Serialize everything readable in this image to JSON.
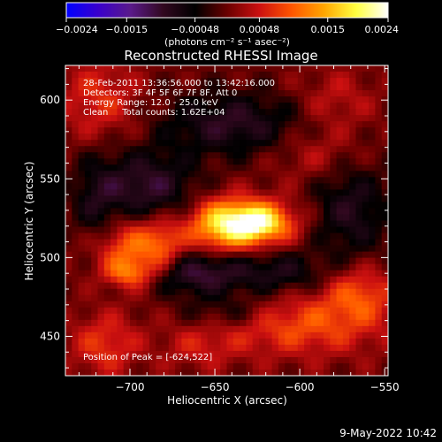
{
  "chart_data": {
    "type": "heatmap",
    "title": "Reconstructed RHESSI Image",
    "xlabel": "Heliocentric X (arcsec)",
    "ylabel": "Heliocentric Y (arcsec)",
    "xlim": [
      -738,
      -548
    ],
    "ylim": [
      425,
      622
    ],
    "x_ticks": [
      {
        "value": -700,
        "label": "−700"
      },
      {
        "value": -650,
        "label": "−650"
      },
      {
        "value": -600,
        "label": "−600"
      },
      {
        "value": -550,
        "label": "−550"
      }
    ],
    "y_ticks": [
      {
        "value": 450,
        "label": "450"
      },
      {
        "value": 500,
        "label": "500"
      },
      {
        "value": 550,
        "label": "550"
      },
      {
        "value": 600,
        "label": "600"
      }
    ],
    "colorbar": {
      "range": [
        -0.0024,
        0.0024
      ],
      "ticks": [
        {
          "value": -0.0024,
          "label": "−0.0024"
        },
        {
          "value": -0.0015,
          "label": "−0.0015"
        },
        {
          "value": -0.00048,
          "label": "−0.00048"
        },
        {
          "value": 0.00048,
          "label": "0.00048"
        },
        {
          "value": 0.0015,
          "label": "0.0015"
        },
        {
          "value": 0.0024,
          "label": "0.0024"
        }
      ],
      "unit_label": "(photons cm⁻² s⁻¹ asec⁻²)",
      "colormap": [
        "#0000ff",
        "#3a00cc",
        "#5a1a8a",
        "#320820",
        "#000000",
        "#6a0000",
        "#cc1010",
        "#ff5500",
        "#ffa500",
        "#ffff40",
        "#ffffff"
      ]
    },
    "annotations": [
      "28-Feb-2011 13:36:56.000 to 13:42:16.000",
      "Detectors: 3F 4F 5F 6F 7F 8F, Att 0",
      "Energy Range: 12.0 - 25.0 keV",
      "Clean     Total counts: 1.62E+04"
    ],
    "peak_label": "Position of Peak = [-624,522]",
    "peak": {
      "x": -624,
      "y": 522,
      "value": 0.0024
    },
    "sources": [
      {
        "x": -628,
        "y": 522,
        "amp": 0.00185,
        "sx": 17,
        "sy": 10
      },
      {
        "x": -648,
        "y": 520,
        "amp": 0.0011,
        "sx": 14,
        "sy": 12
      },
      {
        "x": -700,
        "y": 505,
        "amp": 0.00115,
        "sx": 17,
        "sy": 14
      },
      {
        "x": -700,
        "y": 490,
        "amp": 0.0008,
        "sx": 10,
        "sy": 6
      },
      {
        "x": -680,
        "y": 508,
        "amp": 0.0006,
        "sx": 8,
        "sy": 12
      },
      {
        "x": -600,
        "y": 458,
        "amp": 0.0009,
        "sx": 35,
        "sy": 14
      },
      {
        "x": -565,
        "y": 478,
        "amp": 0.0008,
        "sx": 14,
        "sy": 12
      },
      {
        "x": -718,
        "y": 600,
        "amp": 0.00065,
        "sx": 16,
        "sy": 18
      },
      {
        "x": -715,
        "y": 445,
        "amp": 0.0007,
        "sx": 14,
        "sy": 14
      },
      {
        "x": -660,
        "y": 443,
        "amp": 0.0004,
        "sx": 16,
        "sy": 10
      },
      {
        "x": -590,
        "y": 565,
        "amp": 0.0004,
        "sx": 18,
        "sy": 12
      },
      {
        "x": -578,
        "y": 600,
        "amp": 0.0004,
        "sx": 16,
        "sy": 14
      },
      {
        "x": -640,
        "y": 585,
        "amp": -0.0009,
        "sx": 28,
        "sy": 14
      },
      {
        "x": -690,
        "y": 545,
        "amp": -0.001,
        "sx": 20,
        "sy": 16
      },
      {
        "x": -660,
        "y": 490,
        "amp": -0.0011,
        "sx": 22,
        "sy": 10
      },
      {
        "x": -610,
        "y": 490,
        "amp": -0.0007,
        "sx": 18,
        "sy": 10
      },
      {
        "x": -570,
        "y": 530,
        "amp": -0.0008,
        "sx": 16,
        "sy": 22
      },
      {
        "x": -720,
        "y": 530,
        "amp": -0.0006,
        "sx": 10,
        "sy": 25
      },
      {
        "x": -640,
        "y": 465,
        "amp": -0.0006,
        "sx": 20,
        "sy": 8
      }
    ]
  },
  "footer": {
    "timestamp": "9-May-2022 10:42"
  }
}
